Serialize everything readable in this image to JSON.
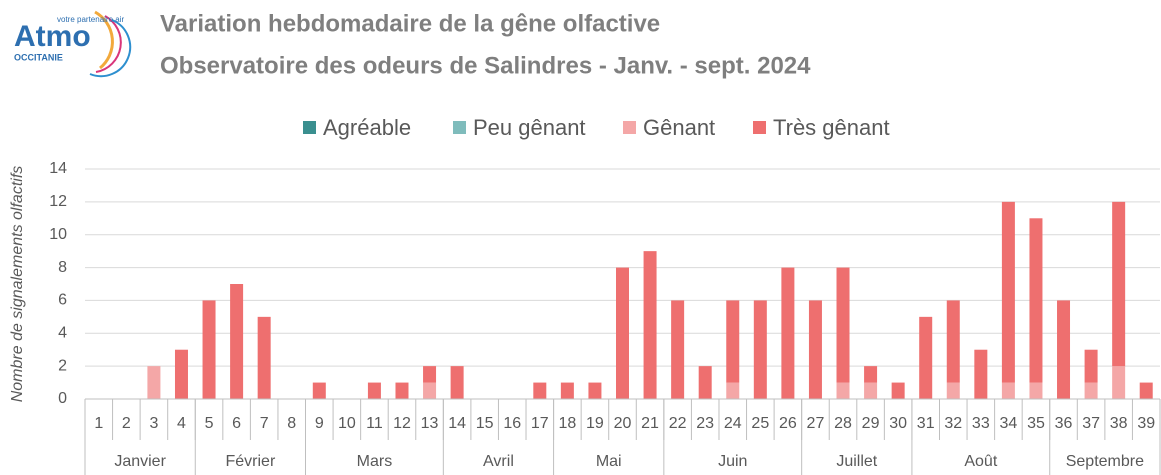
{
  "logo": {
    "name": "Atmo",
    "tagline": "votre partenaire air",
    "region": "OCCITANIE"
  },
  "chart_data": {
    "type": "stacked_bar",
    "title": "Variation hebdomadaire de la gêne olfactive",
    "subtitle": "Observatoire des odeurs de Salindres - Janv. - sept. 2024",
    "y_label": "Nombre de signalements olfactifs",
    "categories": [
      "1",
      "2",
      "3",
      "4",
      "5",
      "6",
      "7",
      "8",
      "9",
      "10",
      "11",
      "12",
      "13",
      "14",
      "15",
      "16",
      "17",
      "18",
      "19",
      "20",
      "21",
      "22",
      "23",
      "24",
      "25",
      "26",
      "27",
      "28",
      "29",
      "30",
      "31",
      "32",
      "33",
      "34",
      "35",
      "36",
      "37",
      "38",
      "39"
    ],
    "month_groups": [
      {
        "label": "Janvier",
        "count": 4
      },
      {
        "label": "Février",
        "count": 4
      },
      {
        "label": "Mars",
        "count": 5
      },
      {
        "label": "Avril",
        "count": 4
      },
      {
        "label": "Mai",
        "count": 4
      },
      {
        "label": "Juin",
        "count": 5
      },
      {
        "label": "Juillet",
        "count": 4
      },
      {
        "label": "Août",
        "count": 5
      },
      {
        "label": "Septembre",
        "count": 4
      }
    ],
    "series": [
      {
        "name": "Agréable",
        "color": "#3a8f8f",
        "values": [
          0,
          0,
          0,
          0,
          0,
          0,
          0,
          0,
          0,
          0,
          0,
          0,
          0,
          0,
          0,
          0,
          0,
          0,
          0,
          0,
          0,
          0,
          0,
          0,
          0,
          0,
          0,
          0,
          0,
          0,
          0,
          0,
          0,
          0,
          0,
          0,
          0,
          0,
          0
        ]
      },
      {
        "name": "Peu gênant",
        "color": "#7fbcbc",
        "values": [
          0,
          0,
          0,
          0,
          0,
          0,
          0,
          0,
          0,
          0,
          0,
          0,
          0,
          0,
          0,
          0,
          0,
          0,
          0,
          0,
          0,
          0,
          0,
          0,
          0,
          0,
          0,
          0,
          0,
          0,
          0,
          0,
          0,
          0,
          0,
          0,
          0,
          0,
          0
        ]
      },
      {
        "name": "Gênant",
        "color": "#f4a7a7",
        "values": [
          0,
          0,
          2,
          0,
          0,
          0,
          0,
          0,
          0,
          0,
          0,
          0,
          1,
          0,
          0,
          0,
          0,
          0,
          0,
          0,
          0,
          0,
          0,
          1,
          0,
          0,
          0,
          1,
          1,
          0,
          0,
          1,
          0,
          1,
          1,
          0,
          1,
          2,
          0
        ]
      },
      {
        "name": "Très gênant",
        "color": "#ee6f6f",
        "values": [
          0,
          0,
          0,
          3,
          6,
          7,
          5,
          0,
          1,
          0,
          1,
          1,
          1,
          2,
          0,
          0,
          1,
          1,
          1,
          8,
          9,
          6,
          2,
          5,
          6,
          8,
          6,
          7,
          1,
          1,
          5,
          5,
          3,
          11,
          10,
          6,
          2,
          10,
          1
        ]
      }
    ],
    "ylim": [
      0,
      14
    ],
    "yticks": [
      0,
      2,
      4,
      6,
      8,
      10,
      12,
      14
    ],
    "grid": true,
    "legend": "top"
  }
}
